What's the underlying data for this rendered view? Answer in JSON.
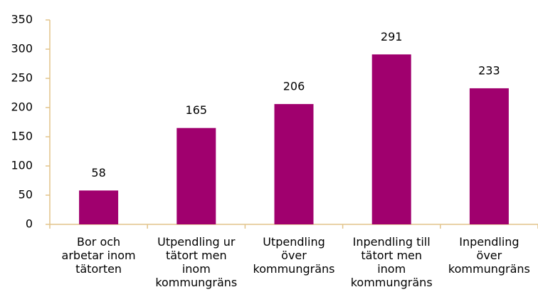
{
  "chart_data": {
    "type": "bar",
    "categories": [
      "Bor och arbetar inom tätorten",
      "Utpendling ur tätort men inom kommungräns",
      "Utpendling över kommungräns",
      "Inpendling till tätort men inom kommungräns",
      "Inpendling över kommungräns"
    ],
    "values": [
      58,
      165,
      206,
      291,
      233
    ],
    "color": "#a0006e",
    "ylim": [
      0,
      350
    ],
    "yticks": [
      0,
      50,
      100,
      150,
      200,
      250,
      300,
      350
    ],
    "grid": false
  }
}
